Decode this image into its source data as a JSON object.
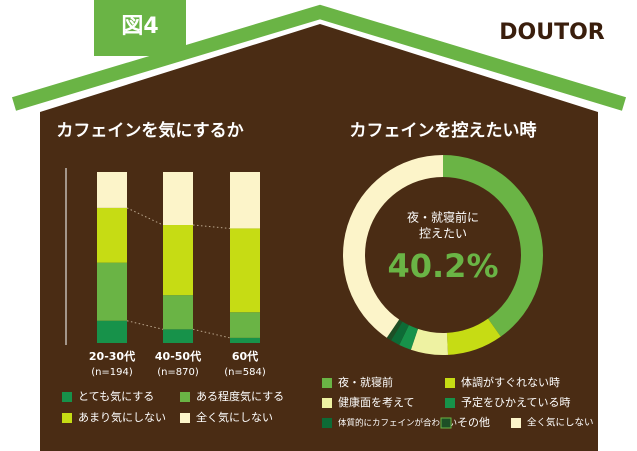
{
  "figure_label": "図4",
  "brand": "DOUTOR",
  "chart_data": [
    {
      "type": "stacked-bar",
      "title": "カフェインを気にするか",
      "categories": [
        "20-30代",
        "40-50代",
        "60代"
      ],
      "category_notes": [
        "(n=194)",
        "(n=870)",
        "(n=584)"
      ],
      "ylim": [
        0,
        100
      ],
      "series": [
        {
          "name": "とても気にする",
          "color": "#17924a",
          "values": [
            13,
            8,
            3
          ]
        },
        {
          "name": "ある程度気にする",
          "color": "#6ab445",
          "values": [
            34,
            20,
            15
          ]
        },
        {
          "name": "あまり気にしない",
          "color": "#c6dc14",
          "values": [
            32,
            41,
            49
          ]
        },
        {
          "name": "全く気にしない",
          "color": "#fcf4c9",
          "values": [
            21,
            31,
            33
          ]
        }
      ]
    },
    {
      "type": "donut",
      "title": "カフェインを控えたい時",
      "center_text": [
        "夜・就寝前に",
        "控えたい"
      ],
      "categories": [
        "夜・就寝前",
        "体調がすぐれない時",
        "健康面を考えて",
        "予定をひかえている時",
        "体質的にカフェインが合わない",
        "その他",
        "全く気にしない"
      ],
      "values": [
        40.2,
        9,
        6,
        2,
        1.5,
        0.8,
        40.5
      ],
      "value_labels": [
        "40.2%",
        null,
        null,
        null,
        null,
        null,
        null
      ],
      "colors": [
        "#6ab445",
        "#c6dc14",
        "#eef2a2",
        "#17924a",
        "#0d6b36",
        "#1d4f26",
        "#fcf4c9"
      ]
    }
  ]
}
